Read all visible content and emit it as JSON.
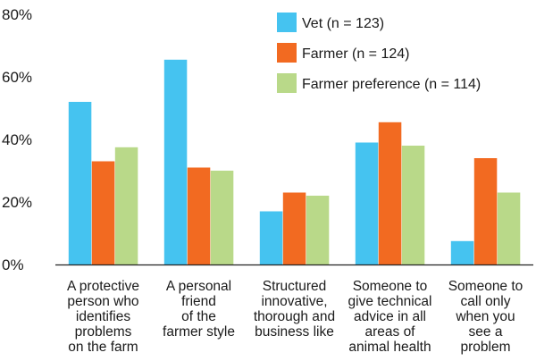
{
  "chart_data": {
    "type": "bar",
    "title": "",
    "xlabel": "",
    "ylabel": "",
    "ylim": [
      0,
      80
    ],
    "yticks": [
      "0%",
      "20%",
      "40%",
      "60%",
      "80%"
    ],
    "ytick_values": [
      0,
      20,
      40,
      60,
      80
    ],
    "grid": false,
    "legend_position": "top-right",
    "categories": [
      [
        "A protective",
        "person who",
        "identifies",
        "problems",
        "on the farm"
      ],
      [
        "A personal",
        "friend",
        "of the",
        "farmer style"
      ],
      [
        "Structured",
        "innovative,",
        "thorough and",
        "business like"
      ],
      [
        "Someone to",
        "give technical",
        "advice in all",
        "areas of",
        "animal health"
      ],
      [
        "Someone to",
        "call only",
        "when you",
        "see a",
        "problem"
      ]
    ],
    "series": [
      {
        "name": "Vet (n = 123)",
        "color": "#45c3f0",
        "values": [
          52,
          65.5,
          17,
          39,
          7.5
        ]
      },
      {
        "name": "Farmer (n = 124)",
        "color": "#f26a21",
        "values": [
          33,
          31,
          23,
          45.5,
          34
        ]
      },
      {
        "name": "Farmer preference (n = 114)",
        "color": "#b9d989",
        "values": [
          37.5,
          30,
          22,
          38,
          23
        ]
      }
    ]
  }
}
